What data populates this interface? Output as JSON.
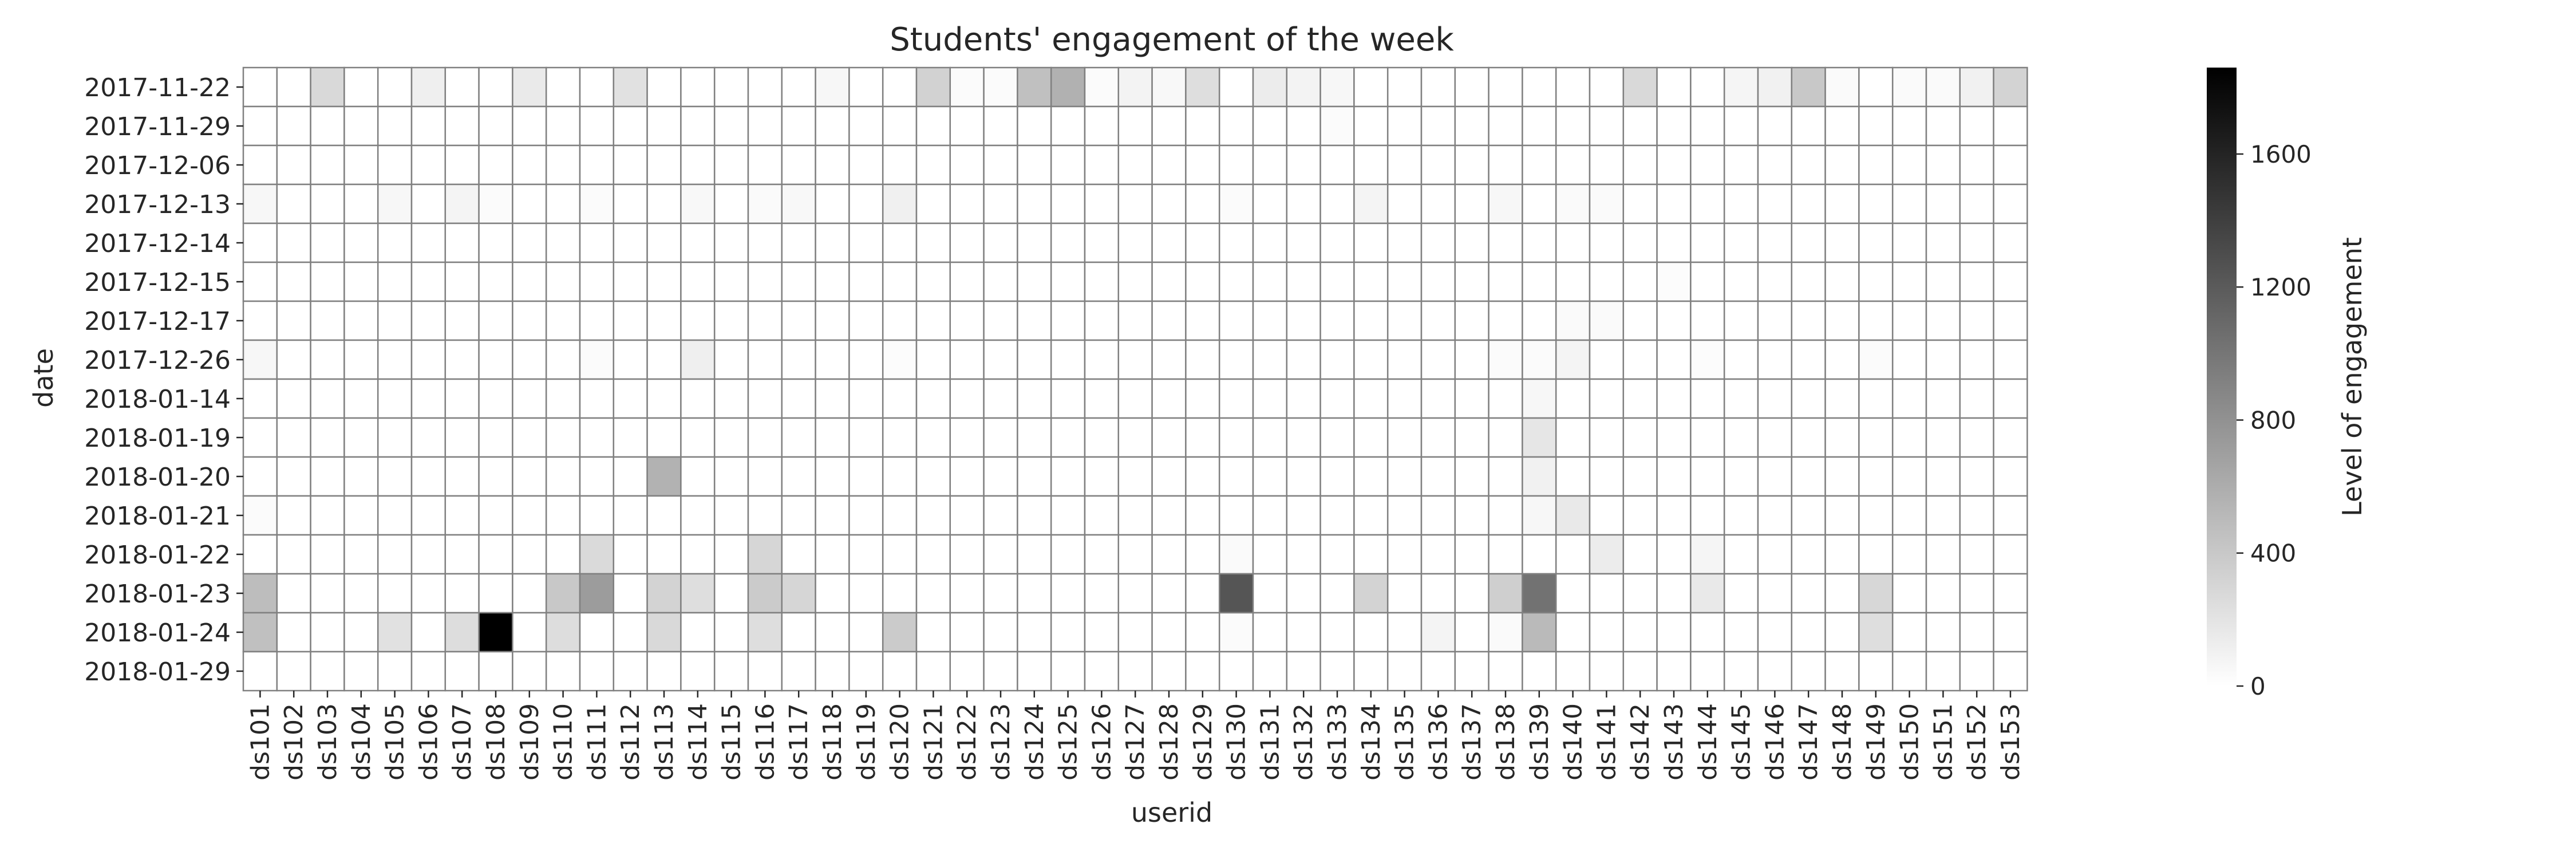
{
  "chart_data": {
    "type": "heatmap",
    "title": "Students' engagement of the week",
    "xlabel": "userid",
    "ylabel": "date",
    "colorbar": {
      "label": "Level of engagement",
      "range": [
        0,
        1860
      ],
      "ticks": [
        0,
        400,
        800,
        1200,
        1600
      ],
      "colormap": "greys",
      "low_color": "#ffffff",
      "high_color": "#000000"
    },
    "grid_color": "#808080",
    "x_categories": [
      "ds101",
      "ds102",
      "ds103",
      "ds104",
      "ds105",
      "ds106",
      "ds107",
      "ds108",
      "ds109",
      "ds110",
      "ds111",
      "ds112",
      "ds113",
      "ds114",
      "ds115",
      "ds116",
      "ds117",
      "ds118",
      "ds119",
      "ds120",
      "ds121",
      "ds122",
      "ds123",
      "ds124",
      "ds125",
      "ds126",
      "ds127",
      "ds128",
      "ds129",
      "ds130",
      "ds131",
      "ds132",
      "ds133",
      "ds134",
      "ds135",
      "ds136",
      "ds137",
      "ds138",
      "ds139",
      "ds140",
      "ds141",
      "ds142",
      "ds143",
      "ds144",
      "ds145",
      "ds146",
      "ds147",
      "ds148",
      "ds149",
      "ds150",
      "ds151",
      "ds152",
      "ds153"
    ],
    "y_categories": [
      "2017-11-22",
      "2017-11-29",
      "2017-12-06",
      "2017-12-13",
      "2017-12-14",
      "2017-12-15",
      "2017-12-17",
      "2017-12-26",
      "2018-01-14",
      "2018-01-19",
      "2018-01-20",
      "2018-01-21",
      "2018-01-22",
      "2018-01-23",
      "2018-01-24",
      "2018-01-29"
    ],
    "values": [
      [
        0,
        0,
        280,
        0,
        0,
        120,
        0,
        0,
        150,
        0,
        0,
        220,
        0,
        0,
        0,
        0,
        0,
        60,
        0,
        0,
        330,
        30,
        30,
        460,
        570,
        30,
        90,
        50,
        240,
        0,
        140,
        90,
        60,
        0,
        0,
        0,
        0,
        0,
        0,
        0,
        0,
        280,
        0,
        0,
        70,
        100,
        400,
        40,
        0,
        40,
        40,
        100,
        320
      ],
      [
        0,
        0,
        0,
        0,
        0,
        0,
        0,
        0,
        0,
        0,
        0,
        0,
        0,
        0,
        0,
        0,
        0,
        0,
        0,
        0,
        0,
        0,
        0,
        0,
        0,
        0,
        0,
        0,
        0,
        0,
        0,
        0,
        30,
        0,
        0,
        0,
        0,
        0,
        0,
        0,
        0,
        0,
        0,
        0,
        0,
        0,
        0,
        0,
        0,
        0,
        0,
        0,
        0
      ],
      [
        0,
        0,
        0,
        0,
        0,
        0,
        0,
        0,
        0,
        0,
        0,
        0,
        0,
        0,
        0,
        0,
        0,
        0,
        0,
        0,
        0,
        0,
        0,
        0,
        0,
        0,
        0,
        0,
        0,
        0,
        0,
        0,
        0,
        0,
        0,
        0,
        0,
        0,
        0,
        0,
        0,
        0,
        0,
        0,
        0,
        0,
        0,
        0,
        0,
        0,
        0,
        0,
        0
      ],
      [
        60,
        0,
        0,
        0,
        60,
        0,
        80,
        30,
        0,
        0,
        30,
        0,
        0,
        50,
        0,
        40,
        50,
        0,
        0,
        110,
        0,
        0,
        0,
        0,
        0,
        0,
        0,
        0,
        0,
        30,
        0,
        0,
        0,
        80,
        0,
        0,
        0,
        60,
        0,
        40,
        40,
        0,
        0,
        0,
        0,
        0,
        0,
        0,
        0,
        0,
        0,
        0,
        0
      ],
      [
        0,
        0,
        0,
        0,
        0,
        0,
        0,
        0,
        0,
        0,
        0,
        0,
        0,
        0,
        0,
        0,
        0,
        0,
        0,
        0,
        0,
        0,
        0,
        0,
        0,
        0,
        0,
        0,
        0,
        0,
        0,
        0,
        0,
        0,
        0,
        0,
        0,
        0,
        0,
        0,
        0,
        0,
        0,
        0,
        0,
        0,
        0,
        0,
        0,
        0,
        0,
        0,
        0
      ],
      [
        0,
        0,
        0,
        0,
        0,
        0,
        0,
        0,
        0,
        0,
        0,
        0,
        0,
        0,
        0,
        0,
        0,
        0,
        0,
        0,
        0,
        0,
        0,
        0,
        0,
        0,
        0,
        0,
        0,
        0,
        0,
        0,
        0,
        0,
        0,
        0,
        0,
        0,
        0,
        0,
        0,
        0,
        20,
        0,
        0,
        0,
        0,
        0,
        0,
        0,
        0,
        0,
        0
      ],
      [
        0,
        0,
        0,
        0,
        0,
        0,
        0,
        0,
        0,
        0,
        0,
        0,
        0,
        0,
        0,
        0,
        0,
        0,
        0,
        0,
        0,
        0,
        0,
        0,
        0,
        0,
        0,
        0,
        0,
        0,
        0,
        0,
        0,
        0,
        0,
        0,
        0,
        0,
        0,
        40,
        40,
        0,
        0,
        0,
        0,
        0,
        0,
        0,
        0,
        0,
        0,
        0,
        0
      ],
      [
        60,
        0,
        0,
        0,
        0,
        0,
        0,
        0,
        0,
        0,
        30,
        0,
        0,
        120,
        0,
        0,
        0,
        0,
        0,
        20,
        0,
        0,
        0,
        0,
        0,
        0,
        0,
        0,
        0,
        0,
        0,
        0,
        0,
        0,
        0,
        0,
        0,
        30,
        30,
        80,
        0,
        0,
        0,
        20,
        0,
        0,
        0,
        0,
        30,
        0,
        0,
        0,
        0
      ],
      [
        0,
        0,
        0,
        0,
        0,
        0,
        0,
        0,
        0,
        0,
        0,
        0,
        0,
        0,
        0,
        0,
        0,
        0,
        0,
        0,
        0,
        0,
        0,
        0,
        0,
        0,
        0,
        0,
        0,
        0,
        0,
        0,
        0,
        0,
        0,
        0,
        0,
        0,
        60,
        0,
        0,
        0,
        0,
        0,
        0,
        0,
        0,
        0,
        0,
        0,
        0,
        0,
        0
      ],
      [
        0,
        0,
        0,
        0,
        0,
        0,
        0,
        0,
        0,
        0,
        0,
        0,
        0,
        0,
        0,
        0,
        0,
        0,
        0,
        0,
        0,
        0,
        0,
        0,
        0,
        0,
        0,
        0,
        0,
        0,
        0,
        0,
        0,
        0,
        0,
        0,
        0,
        0,
        180,
        0,
        0,
        0,
        0,
        0,
        0,
        0,
        0,
        0,
        0,
        0,
        0,
        0,
        0
      ],
      [
        0,
        0,
        0,
        0,
        0,
        0,
        0,
        0,
        0,
        0,
        0,
        0,
        560,
        0,
        0,
        0,
        0,
        0,
        0,
        0,
        0,
        0,
        0,
        0,
        0,
        0,
        0,
        0,
        0,
        0,
        0,
        0,
        0,
        0,
        0,
        0,
        0,
        0,
        100,
        0,
        0,
        0,
        0,
        0,
        0,
        0,
        0,
        0,
        0,
        0,
        0,
        0,
        0
      ],
      [
        30,
        0,
        0,
        0,
        0,
        0,
        0,
        0,
        0,
        0,
        0,
        0,
        0,
        0,
        0,
        0,
        0,
        0,
        0,
        0,
        0,
        0,
        0,
        0,
        0,
        0,
        0,
        0,
        0,
        0,
        0,
        0,
        0,
        0,
        0,
        0,
        0,
        0,
        60,
        160,
        0,
        0,
        0,
        0,
        0,
        0,
        0,
        0,
        0,
        0,
        0,
        0,
        0
      ],
      [
        0,
        0,
        0,
        0,
        0,
        0,
        0,
        0,
        0,
        0,
        270,
        0,
        0,
        0,
        0,
        300,
        0,
        0,
        0,
        0,
        0,
        0,
        0,
        0,
        0,
        0,
        0,
        0,
        0,
        40,
        0,
        0,
        0,
        0,
        0,
        0,
        0,
        0,
        0,
        0,
        140,
        0,
        0,
        70,
        0,
        0,
        0,
        0,
        0,
        0,
        0,
        0,
        0
      ],
      [
        480,
        0,
        0,
        0,
        0,
        0,
        0,
        0,
        0,
        400,
        720,
        0,
        320,
        240,
        0,
        380,
        300,
        0,
        0,
        0,
        0,
        0,
        0,
        0,
        0,
        0,
        0,
        0,
        0,
        1240,
        0,
        0,
        0,
        320,
        0,
        0,
        0,
        350,
        1030,
        0,
        0,
        0,
        0,
        160,
        0,
        0,
        0,
        0,
        290,
        0,
        0,
        0,
        0
      ],
      [
        460,
        0,
        0,
        0,
        220,
        0,
        250,
        1860,
        0,
        250,
        0,
        0,
        280,
        0,
        0,
        240,
        0,
        0,
        0,
        380,
        0,
        0,
        0,
        0,
        0,
        0,
        0,
        0,
        0,
        30,
        0,
        0,
        0,
        0,
        0,
        80,
        0,
        40,
        500,
        0,
        0,
        0,
        0,
        0,
        0,
        0,
        0,
        0,
        240,
        0,
        0,
        0,
        0
      ],
      [
        0,
        0,
        0,
        0,
        0,
        0,
        0,
        0,
        0,
        0,
        0,
        0,
        0,
        0,
        0,
        0,
        0,
        0,
        0,
        0,
        0,
        0,
        0,
        0,
        0,
        0,
        0,
        0,
        0,
        0,
        0,
        0,
        0,
        0,
        0,
        0,
        0,
        0,
        0,
        0,
        0,
        0,
        0,
        0,
        0,
        0,
        0,
        0,
        0,
        0,
        0,
        0,
        0
      ]
    ]
  }
}
